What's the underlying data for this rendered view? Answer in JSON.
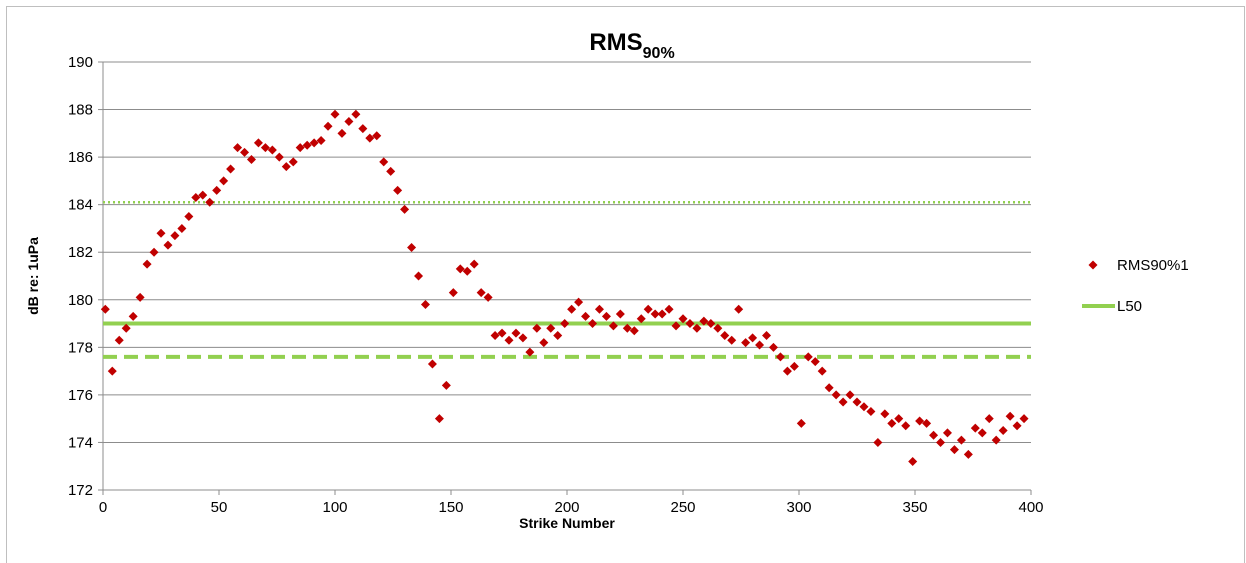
{
  "chart_data": {
    "type": "scatter",
    "title": "RMS",
    "title_subscript": "90%",
    "x_label": "Strike Number",
    "y_label": "dB re: 1uPa",
    "xlim": [
      0,
      400
    ],
    "xticks": [
      0,
      50,
      100,
      150,
      200,
      250,
      300,
      350,
      400
    ],
    "ylim": [
      172,
      190
    ],
    "yticks": [
      172,
      174,
      176,
      178,
      180,
      182,
      184,
      186,
      188,
      190
    ],
    "grid": true,
    "legend": "right",
    "series": [
      {
        "name": "RMS90%1",
        "color": "#c00000",
        "x": [
          1,
          4,
          7,
          10,
          13,
          16,
          19,
          22,
          25,
          28,
          31,
          34,
          37,
          40,
          43,
          46,
          49,
          52,
          55,
          58,
          61,
          64,
          67,
          70,
          73,
          76,
          79,
          82,
          85,
          88,
          91,
          94,
          97,
          100,
          103,
          106,
          109,
          112,
          115,
          118,
          121,
          124,
          127,
          130,
          133,
          136,
          139,
          142,
          145,
          148,
          151,
          154,
          157,
          160,
          163,
          166,
          169,
          172,
          175,
          178,
          181,
          184,
          187,
          190,
          193,
          196,
          199,
          202,
          205,
          208,
          211,
          214,
          217,
          220,
          223,
          226,
          229,
          232,
          235,
          238,
          241,
          244,
          247,
          250,
          253,
          256,
          259,
          262,
          265,
          268,
          271,
          274,
          277,
          280,
          283,
          286,
          289,
          292,
          295,
          298,
          301,
          304,
          307,
          310,
          313,
          316,
          319,
          322,
          325,
          328,
          331,
          334,
          337,
          340,
          343,
          346,
          349,
          352,
          355,
          358,
          361,
          364,
          367,
          370,
          373,
          376,
          379,
          382,
          385,
          388,
          391,
          394,
          397
        ],
        "values": [
          179.6,
          177.0,
          178.3,
          178.8,
          179.3,
          180.1,
          181.5,
          182.0,
          182.8,
          182.3,
          182.7,
          183.0,
          183.5,
          184.3,
          184.4,
          184.1,
          184.6,
          185.0,
          185.5,
          186.4,
          186.2,
          185.9,
          186.6,
          186.4,
          186.3,
          186.0,
          185.6,
          185.8,
          186.4,
          186.5,
          186.6,
          186.7,
          187.3,
          187.8,
          187.0,
          187.5,
          187.8,
          187.2,
          186.8,
          186.9,
          185.8,
          185.4,
          184.6,
          183.8,
          182.2,
          181.0,
          179.8,
          177.3,
          175.0,
          176.4,
          180.3,
          181.3,
          181.2,
          181.5,
          180.3,
          180.1,
          178.5,
          178.6,
          178.3,
          178.6,
          178.4,
          177.8,
          178.8,
          178.2,
          178.8,
          178.5,
          179.0,
          179.6,
          179.9,
          179.3,
          179.0,
          179.6,
          179.3,
          178.9,
          179.4,
          178.8,
          178.7,
          179.2,
          179.6,
          179.4,
          179.4,
          179.6,
          178.9,
          179.2,
          179.0,
          178.8,
          179.1,
          179.0,
          178.8,
          178.5,
          178.3,
          179.6,
          178.2,
          178.4,
          178.1,
          178.5,
          178.0,
          177.6,
          177.0,
          177.2,
          174.8,
          177.6,
          177.4,
          177.0,
          176.3,
          176.0,
          175.7,
          176.0,
          175.7,
          175.5,
          175.3,
          174.0,
          175.2,
          174.8,
          175.0,
          174.7,
          173.2,
          174.9,
          174.8,
          174.3,
          174.0,
          174.4,
          173.7,
          174.1,
          173.5,
          174.6,
          174.4,
          175.0,
          174.1,
          174.5,
          175.1,
          174.7,
          175.0
        ]
      }
    ],
    "reference_lines": [
      {
        "name": "L50",
        "value": 179.0,
        "style": "solid",
        "color": "#92d050"
      },
      {
        "value": 177.6,
        "style": "dashed",
        "color": "#92d050"
      },
      {
        "value": 184.1,
        "style": "dotted",
        "color": "#92d050"
      }
    ]
  }
}
